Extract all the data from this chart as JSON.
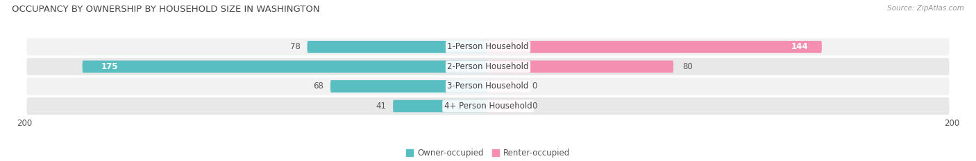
{
  "title": "OCCUPANCY BY OWNERSHIP BY HOUSEHOLD SIZE IN WASHINGTON",
  "source": "Source: ZipAtlas.com",
  "categories": [
    "1-Person Household",
    "2-Person Household",
    "3-Person Household",
    "4+ Person Household"
  ],
  "owner_values": [
    78,
    175,
    68,
    41
  ],
  "renter_values": [
    144,
    80,
    0,
    0
  ],
  "renter_stub": [
    0,
    0,
    15,
    15
  ],
  "owner_color": "#59bec2",
  "renter_color": "#f48fb1",
  "renter_stub_color": "#f9c0d4",
  "axis_max": 200,
  "row_bg_light": "#f2f2f2",
  "row_bg_dark": "#e8e8e8",
  "label_fontsize": 8.5,
  "title_fontsize": 9.5,
  "source_fontsize": 7.5,
  "legend_fontsize": 8.5,
  "value_fontsize": 8.5,
  "figsize": [
    14.06,
    2.33
  ],
  "dpi": 100
}
